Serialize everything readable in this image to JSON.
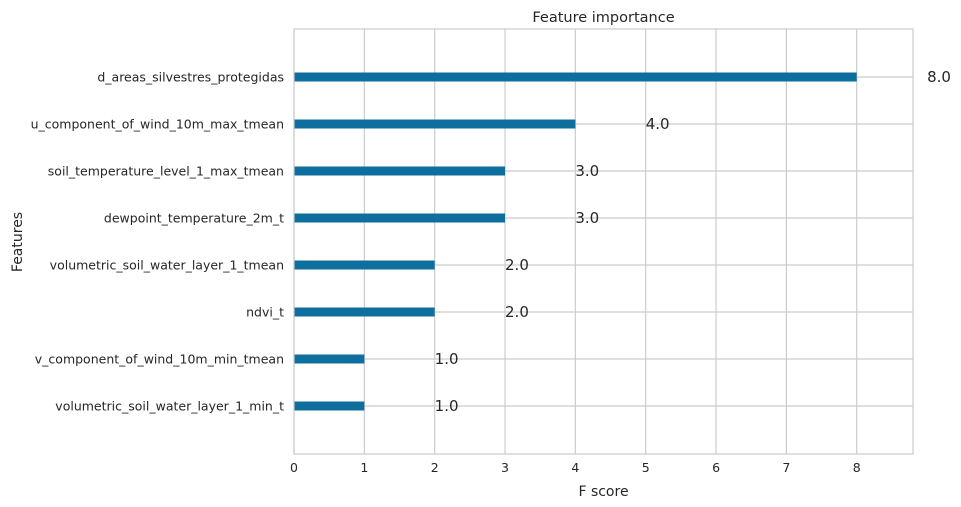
{
  "chart_data": {
    "type": "bar",
    "orientation": "horizontal",
    "title": "Feature importance",
    "xlabel": "F score",
    "ylabel": "Features",
    "xlim": [
      0,
      8.8
    ],
    "x_ticks": [
      0,
      1,
      2,
      3,
      4,
      5,
      6,
      7,
      8
    ],
    "grid": true,
    "bar_color": "#0e6f9e",
    "categories": [
      "d_areas_silvestres_protegidas",
      "u_component_of_wind_10m_max_tmean",
      "soil_temperature_level_1_max_tmean",
      "dewpoint_temperature_2m_t",
      "volumetric_soil_water_layer_1_tmean",
      "ndvi_t",
      "v_component_of_wind_10m_min_tmean",
      "volumetric_soil_water_layer_1_min_t"
    ],
    "values": [
      8,
      4,
      3,
      3,
      2,
      2,
      1,
      1
    ],
    "data_labels": [
      "8.0",
      "4.0",
      "3.0",
      "3.0",
      "2.0",
      "2.0",
      "1.0",
      "1.0"
    ]
  }
}
